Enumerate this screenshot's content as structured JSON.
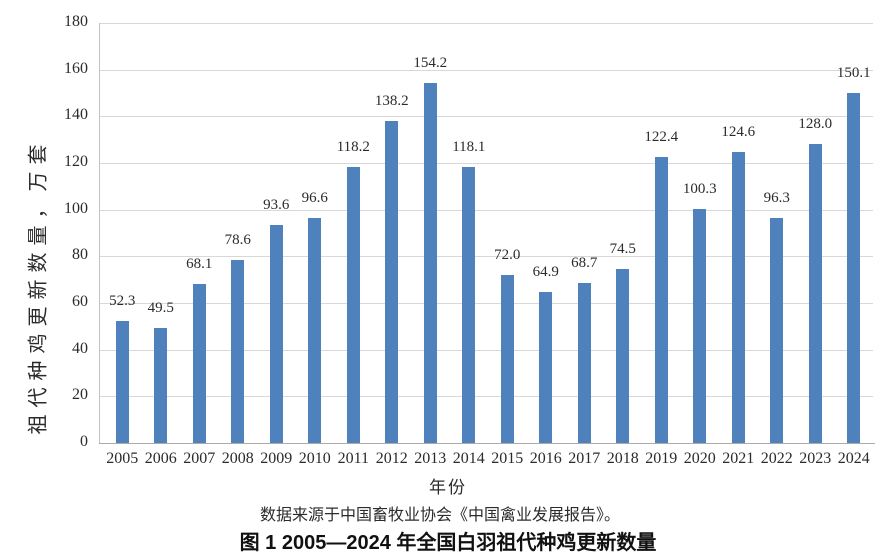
{
  "chart_data": {
    "type": "bar",
    "title": "图 1 2005—2024 年全国白羽祖代种鸡更新数量",
    "categories": [
      "2005",
      "2006",
      "2007",
      "2008",
      "2009",
      "2010",
      "2011",
      "2012",
      "2013",
      "2014",
      "2015",
      "2016",
      "2017",
      "2018",
      "2019",
      "2020",
      "2021",
      "2022",
      "2023",
      "2024"
    ],
    "values": [
      52.3,
      49.5,
      68.1,
      78.6,
      93.6,
      96.6,
      118.2,
      138.2,
      154.2,
      118.1,
      72.0,
      64.9,
      68.7,
      74.5,
      122.4,
      100.3,
      124.6,
      96.3,
      128.0,
      150.1
    ],
    "value_labels": [
      "52.3",
      "49.5",
      "68.1",
      "78.6",
      "93.6",
      "96.6",
      "118.2",
      "138.2",
      "154.2",
      "118.1",
      "72.0",
      "64.9",
      "68.7",
      "74.5",
      "122.4",
      "100.3",
      "124.6",
      "96.3",
      "128.0",
      "150.1"
    ],
    "xlabel": "年份",
    "ylabel": "祖代种鸡更新数量，万套",
    "ylim": [
      0,
      180
    ],
    "ytick_step": 20,
    "grid": true,
    "legend": "none",
    "bar_color": "#4f81bd",
    "gridline_color": "#d8d8d8",
    "axis_color": "#ababab"
  },
  "footer": {
    "source": "数据来源于中国畜牧业协会《中国禽业发展报告》。",
    "caption": "图 1 2005—2024 年全国白羽祖代种鸡更新数量"
  }
}
